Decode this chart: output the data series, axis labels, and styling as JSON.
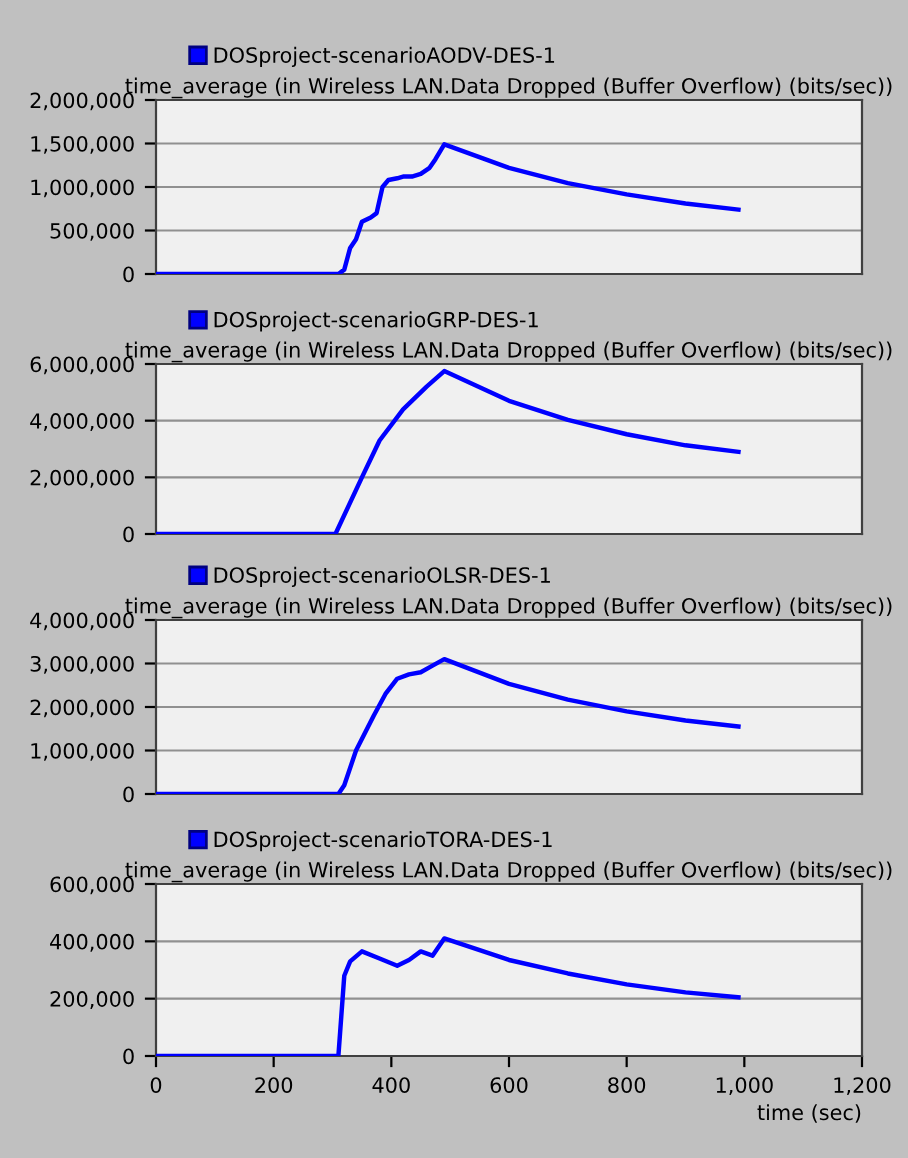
{
  "chart_data": [
    {
      "type": "line",
      "ylabel": "time_average (in Wireless LAN.Data Dropped (Buffer Overflow) (bits/sec))",
      "legend": "top",
      "grid": "y",
      "tick_labels": "y",
      "xlim": [
        0,
        1200
      ],
      "ylim": [
        0,
        2000000
      ],
      "yticks": [
        0,
        {
          "value": 500000,
          "label": "500,000"
        },
        {
          "value": 1000000,
          "label": "1,000,000"
        },
        {
          "value": 1500000,
          "label": "1,500,000"
        },
        {
          "value": 2000000,
          "label": "2,000,000"
        }
      ],
      "series": [
        {
          "name": "DOSproject-scenarioAODV-DES-1",
          "color": "#0000ff",
          "x": [
            0,
            310,
            320,
            330,
            340,
            350,
            365,
            375,
            385,
            395,
            410,
            420,
            435,
            450,
            465,
            475,
            490,
            600,
            700,
            800,
            900,
            990
          ],
          "values": [
            0,
            0,
            50000,
            300000,
            400000,
            600000,
            650000,
            700000,
            1000000,
            1080000,
            1100000,
            1120000,
            1120000,
            1150000,
            1220000,
            1320000,
            1490000,
            1220000,
            1045000,
            915000,
            810000,
            740000
          ]
        }
      ]
    },
    {
      "type": "line",
      "ylabel": "time_average (in Wireless LAN.Data Dropped (Buffer Overflow) (bits/sec))",
      "legend": "top",
      "grid": "y",
      "tick_labels": "y",
      "xlim": [
        0,
        1200
      ],
      "ylim": [
        0,
        6000000
      ],
      "yticks": [
        0,
        {
          "value": 2000000,
          "label": "2,000,000"
        },
        {
          "value": 4000000,
          "label": "4,000,000"
        },
        {
          "value": 6000000,
          "label": "6,000,000"
        }
      ],
      "series": [
        {
          "name": "DOSproject-scenarioGRP-DES-1",
          "color": "#0000ff",
          "x": [
            0,
            305,
            350,
            380,
            420,
            460,
            490,
            600,
            700,
            800,
            900,
            990
          ],
          "values": [
            0,
            0,
            2000000,
            3300000,
            4400000,
            5200000,
            5750000,
            4700000,
            4030000,
            3520000,
            3130000,
            2900000
          ]
        }
      ]
    },
    {
      "type": "line",
      "ylabel": "time_average (in Wireless LAN.Data Dropped (Buffer Overflow) (bits/sec))",
      "legend": "top",
      "grid": "y",
      "tick_labels": "y",
      "xlim": [
        0,
        1200
      ],
      "ylim": [
        0,
        4000000
      ],
      "yticks": [
        0,
        {
          "value": 1000000,
          "label": "1,000,000"
        },
        {
          "value": 2000000,
          "label": "2,000,000"
        },
        {
          "value": 3000000,
          "label": "3,000,000"
        },
        {
          "value": 4000000,
          "label": "4,000,000"
        }
      ],
      "series": [
        {
          "name": "DOSproject-scenarioOLSR-DES-1",
          "color": "#0000ff",
          "x": [
            0,
            310,
            320,
            340,
            370,
            390,
            410,
            430,
            450,
            470,
            490,
            600,
            700,
            800,
            900,
            990
          ],
          "values": [
            0,
            0,
            200000,
            1000000,
            1800000,
            2300000,
            2650000,
            2750000,
            2800000,
            2950000,
            3100000,
            2530000,
            2170000,
            1900000,
            1690000,
            1550000
          ]
        }
      ]
    },
    {
      "type": "line",
      "ylabel": "time_average (in Wireless LAN.Data Dropped (Buffer Overflow) (bits/sec))",
      "xlabel": "time (sec)",
      "legend": "top",
      "grid": "y",
      "xlim": [
        0,
        1200
      ],
      "xticks": [
        0,
        200,
        400,
        600,
        800,
        {
          "value": 1000,
          "label": "1,000"
        },
        {
          "value": 1200,
          "label": "1,200"
        }
      ],
      "ylim": [
        0,
        600000
      ],
      "yticks": [
        0,
        {
          "value": 200000,
          "label": "200,000"
        },
        {
          "value": 400000,
          "label": "400,000"
        },
        {
          "value": 600000,
          "label": "600,000"
        }
      ],
      "series": [
        {
          "name": "DOSproject-scenarioTORA-DES-1",
          "color": "#0000ff",
          "x": [
            0,
            310,
            320,
            330,
            350,
            380,
            410,
            430,
            450,
            470,
            490,
            600,
            700,
            800,
            900,
            990
          ],
          "values": [
            0,
            0,
            280000,
            330000,
            365000,
            340000,
            315000,
            335000,
            365000,
            350000,
            410000,
            335000,
            288000,
            250000,
            222000,
            205000
          ]
        }
      ]
    }
  ]
}
